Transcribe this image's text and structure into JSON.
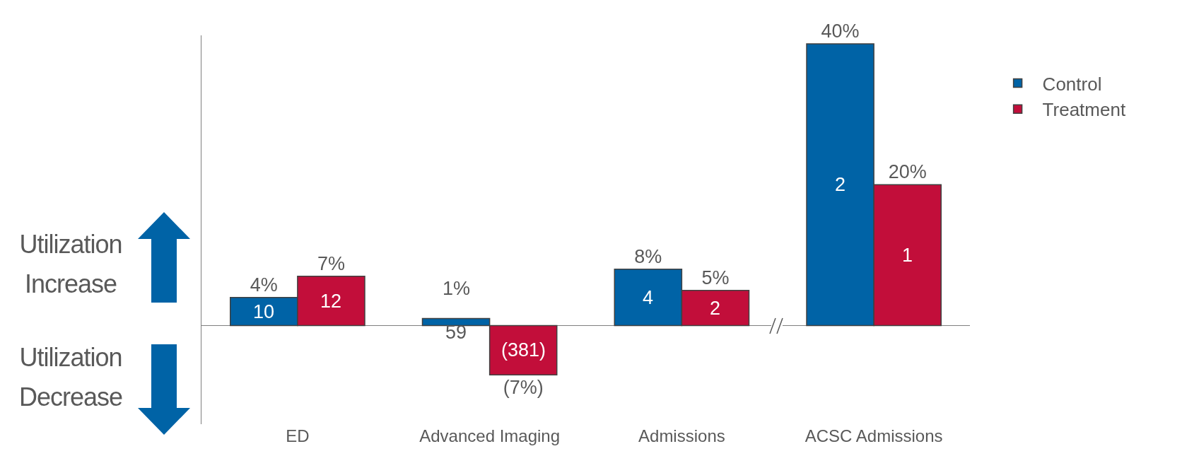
{
  "chart_data": {
    "type": "bar",
    "categories": [
      "ED",
      "Advanced Imaging",
      "Admissions",
      "ACSC Admissions"
    ],
    "series": [
      {
        "name": "Control",
        "color": "#0063a6",
        "values": [
          4,
          1,
          8,
          40
        ],
        "value_labels": [
          "4%",
          "1%",
          "8%",
          "40%"
        ]
      },
      {
        "name": "Treatment",
        "color": "#c20e3a",
        "values": [
          7,
          -7,
          5,
          20
        ],
        "value_labels": [
          "7%",
          "(7%)",
          "5%",
          "20%"
        ]
      }
    ],
    "annotations": [
      "Utilization Increase",
      "Utilization Decrease",
      {
        "text": "10",
        "x": "ED",
        "y": 2
      },
      {
        "text": "12",
        "x": "ED",
        "y": 3.5
      },
      {
        "text": "59",
        "x": "Advanced Imaging",
        "y": 0.5
      },
      {
        "text": "(381)",
        "x": "Advanced Imaging",
        "y": -3.5
      },
      {
        "text": "4",
        "x": "Admissions",
        "y": 4
      },
      {
        "text": "2",
        "x": "Admissions",
        "y": 2.5
      },
      {
        "text": "2",
        "x": "ACSC Admissions",
        "y": 20
      },
      {
        "text": "1",
        "x": "ACSC Admissions",
        "y": 10
      }
    ],
    "legend": "top right",
    "grid": false
  }
}
